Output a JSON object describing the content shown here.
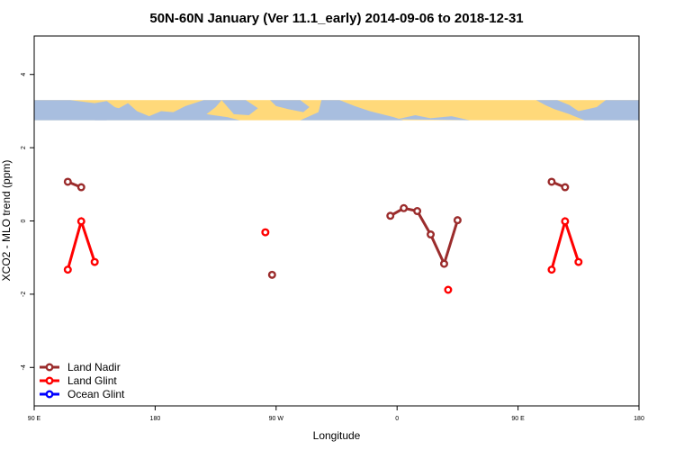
{
  "chart_data": {
    "type": "scatter",
    "title": "50N-60N January (Ver 11.1_early)   2014-09-06 to 2018-12-31",
    "xlabel": "Longitude",
    "ylabel": "XCO2 - MLO trend (ppm)",
    "xlim": [
      90,
      540
    ],
    "ylim": [
      -5.05,
      5.05
    ],
    "x_ticks": [
      {
        "value": 90,
        "label": "90 E"
      },
      {
        "value": 180,
        "label": "180"
      },
      {
        "value": 270,
        "label": "90 W"
      },
      {
        "value": 360,
        "label": "0"
      },
      {
        "value": 450,
        "label": "90 E"
      },
      {
        "value": 540,
        "label": "180"
      }
    ],
    "y_ticks": [
      {
        "value": -4,
        "label": "-4"
      },
      {
        "value": -2,
        "label": "-2"
      },
      {
        "value": 0,
        "label": "0"
      },
      {
        "value": 2,
        "label": "2"
      },
      {
        "value": 4,
        "label": "4"
      }
    ],
    "map_strip": {
      "y_range": [
        2.75,
        3.3
      ],
      "land_color": "#ffd97a",
      "ocean_color": "#a8bedf"
    },
    "legend_position": "bottom-left",
    "series": [
      {
        "name": "Land Nadir",
        "color": "#9b2c2c",
        "segments": [
          [
            [
              115,
              1.07
            ],
            [
              125,
              0.92
            ]
          ],
          [
            [
              267,
              -1.47
            ]
          ],
          [
            [
              355,
              0.14
            ],
            [
              365,
              0.35
            ],
            [
              375,
              0.27
            ],
            [
              385,
              -0.37
            ],
            [
              395,
              -1.17
            ],
            [
              405,
              0.02
            ]
          ],
          [
            [
              475,
              1.07
            ],
            [
              485,
              0.92
            ]
          ]
        ]
      },
      {
        "name": "Land Glint",
        "color": "#ff0000",
        "segments": [
          [
            [
              115,
              -1.33
            ],
            [
              125,
              -0.01
            ],
            [
              135,
              -1.12
            ]
          ],
          [
            [
              262,
              -0.31
            ]
          ],
          [
            [
              398,
              -1.88
            ]
          ],
          [
            [
              475,
              -1.33
            ],
            [
              485,
              -0.01
            ],
            [
              495,
              -1.12
            ]
          ]
        ]
      },
      {
        "name": "Ocean Glint",
        "color": "#0000ff",
        "segments": []
      }
    ]
  }
}
